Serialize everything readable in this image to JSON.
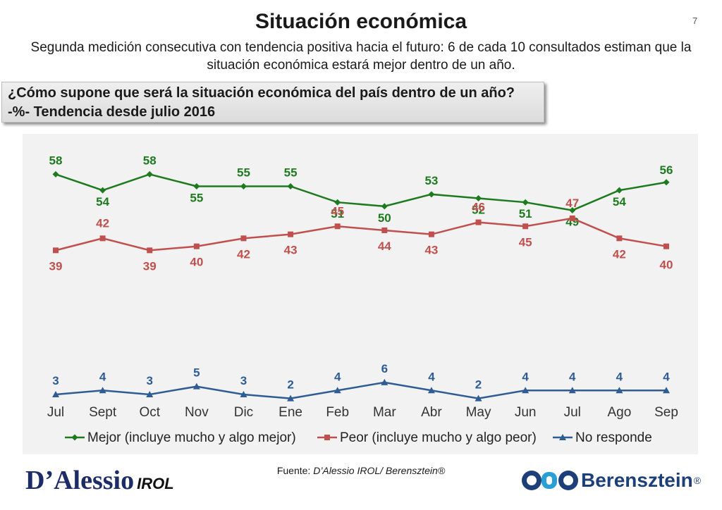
{
  "header": {
    "title": "Situación económica",
    "page_number": "7",
    "subtitle": "Segunda medición consecutiva con tendencia positiva hacia el futuro:  6 de cada 10 consultados estiman que la situación económica estará mejor dentro de un año."
  },
  "question": {
    "line1": "¿Cómo supone que será la situación económica del país dentro de un año?",
    "line2": "-%- Tendencia desde julio 2016"
  },
  "chart_data": {
    "type": "line",
    "categories": [
      "Jul",
      "Sept",
      "Oct",
      "Nov",
      "Dic",
      "Ene",
      "Feb",
      "Mar",
      "Abr",
      "May",
      "Jun",
      "Jul",
      "Ago",
      "Sep"
    ],
    "ylim": [
      0,
      63
    ],
    "grid": false,
    "legend_position": "bottom",
    "series": [
      {
        "name": "Mejor (incluye mucho y algo mejor)",
        "color": "#1e7a1e",
        "marker": "diamond",
        "values": [
          58,
          54,
          58,
          55,
          55,
          55,
          51,
          50,
          53,
          52,
          51,
          49,
          54,
          56
        ]
      },
      {
        "name": "Peor (incluye mucho y algo peor)",
        "color": "#c0504d",
        "marker": "square",
        "values": [
          39,
          42,
          39,
          40,
          42,
          43,
          45,
          44,
          43,
          46,
          45,
          47,
          42,
          40
        ]
      },
      {
        "name": "No responde",
        "color": "#2e5c93",
        "marker": "triangle",
        "values": [
          3,
          4,
          3,
          5,
          3,
          2,
          4,
          6,
          4,
          2,
          4,
          4,
          4,
          4
        ]
      }
    ]
  },
  "footer": {
    "source_prefix": "Fuente: ",
    "source_text": "D’Alessio IROL/ Berensztein®",
    "logo_left_main": "D’Alessio",
    "logo_left_sub": "IROL",
    "logo_right": "Berensztein",
    "logo_right_mark": "®"
  }
}
